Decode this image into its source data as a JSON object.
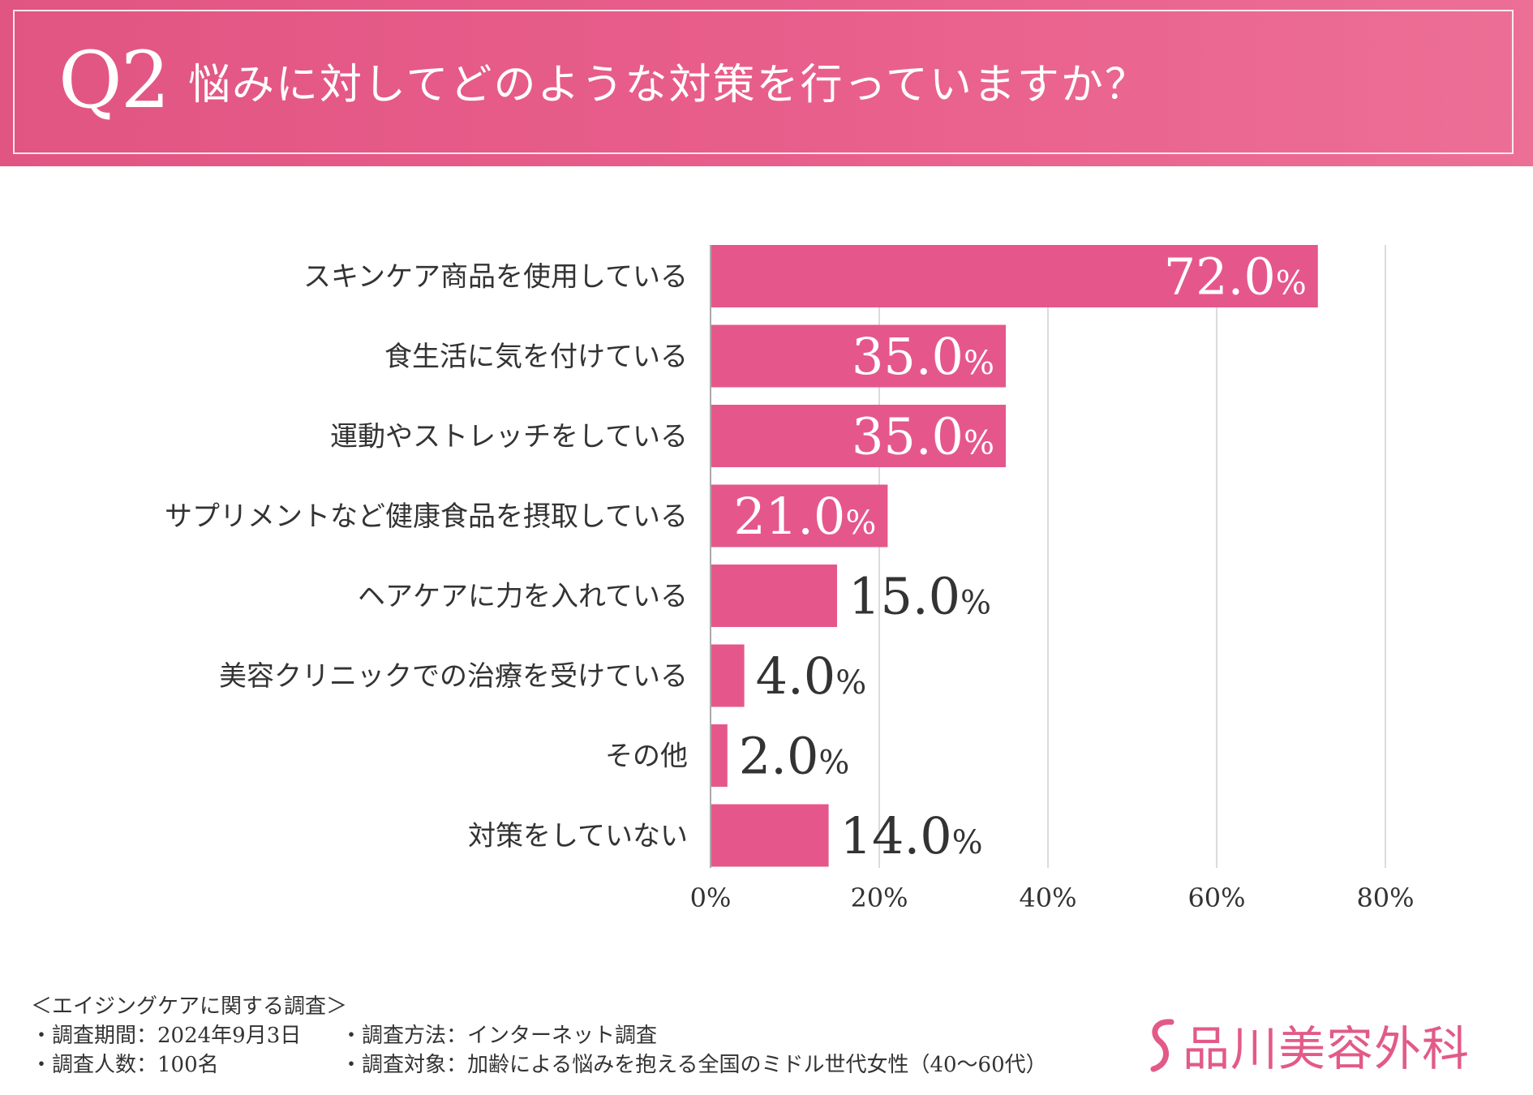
{
  "header": {
    "question_number": "Q2",
    "question_text": "悩みに対してどのような対策を行っていますか？"
  },
  "colors": {
    "accent": "#e5578a",
    "header_bg": "#e95f8c",
    "grid": "#cfcfcf",
    "axis": "#aaaaaa",
    "text": "#333333",
    "label_inside": "#ffffff"
  },
  "chart_data": {
    "type": "bar",
    "orientation": "horizontal",
    "categories": [
      "スキンケア商品を使用している",
      "食生活に気を付けている",
      "運動やストレッチをしている",
      "サプリメントなど健康食品を摂取している",
      "ヘアケアに力を入れている",
      "美容クリニックでの治療を受けている",
      "その他",
      "対策をしていない"
    ],
    "values": [
      72.0,
      35.0,
      35.0,
      21.0,
      15.0,
      4.0,
      2.0,
      14.0
    ],
    "value_labels": [
      "72.0",
      "35.0",
      "35.0",
      "21.0",
      "15.0",
      "4.0",
      "2.0",
      "14.0"
    ],
    "value_suffix": "%",
    "x_ticks": [
      "0%",
      "20%",
      "40%",
      "60%",
      "80%"
    ],
    "x_tick_values": [
      0,
      20,
      40,
      60,
      80
    ],
    "xlim": [
      0,
      80
    ],
    "grid": true,
    "title": "",
    "xlabel": "",
    "ylabel": ""
  },
  "footer": {
    "survey_title": "＜エイジングケアに関する調査＞",
    "period": "・調査期間：2024年9月3日",
    "method": "・調査方法：インターネット調査",
    "count": "・調査人数：100名",
    "target": "・調査対象：加齢による悩みを抱える全国のミドル世代女性（40〜60代）"
  },
  "logo": {
    "text": "品川美容外科",
    "icon": "s-swirl-logo-icon"
  }
}
